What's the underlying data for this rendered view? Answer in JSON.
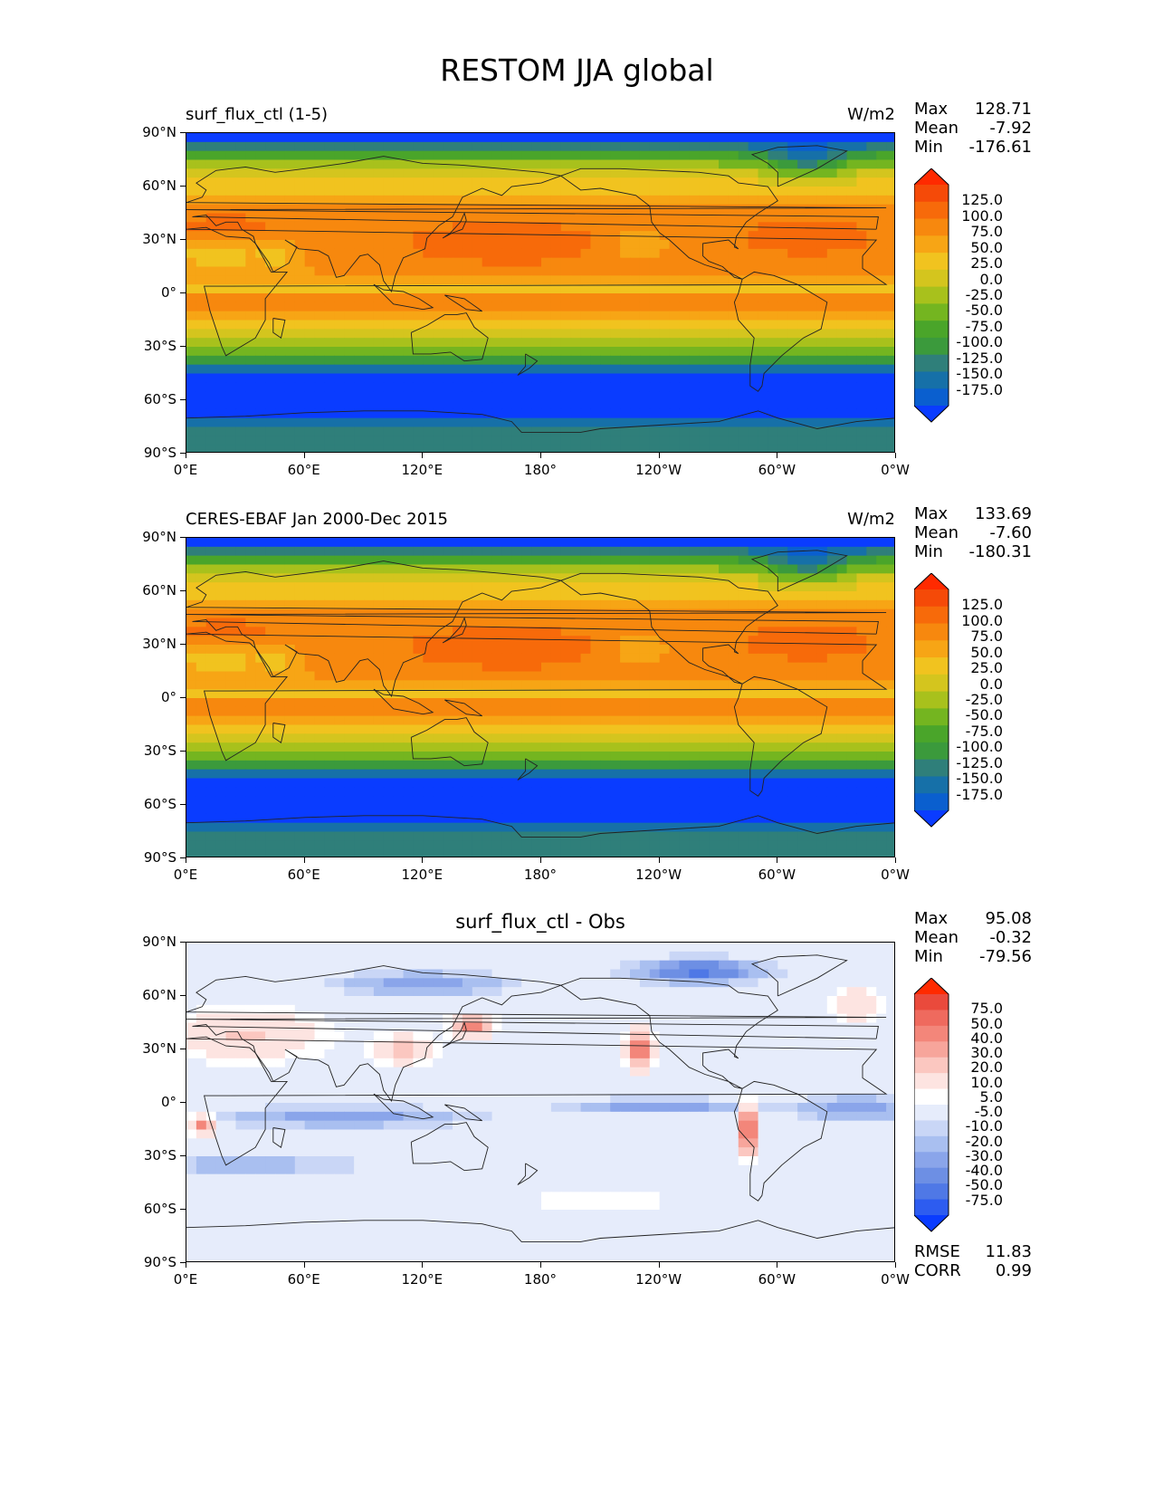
{
  "figure": {
    "title": "RESTOM JJA global"
  },
  "axes": {
    "lat_ticks": [
      "90°N",
      "60°N",
      "30°N",
      "0°",
      "30°S",
      "60°S",
      "90°S"
    ],
    "lon_ticks": [
      "0°E",
      "60°E",
      "120°E",
      "180°",
      "120°W",
      "60°W",
      "0°W"
    ]
  },
  "panels": [
    {
      "left_title": "surf_flux_ctl (1-5)",
      "center_title": "",
      "units": "W/m2",
      "stats": {
        "max_label": "Max",
        "max": "128.71",
        "mean_label": "Mean",
        "mean": "-7.92",
        "min_label": "Min",
        "min": "-176.61"
      },
      "colorbar_labels": [
        "125.0",
        "100.0",
        "75.0",
        "50.0",
        "25.0",
        "0.0",
        "-25.0",
        "-50.0",
        "-75.0",
        "-100.0",
        "-125.0",
        "-150.0",
        "-175.0"
      ],
      "colormap": "wbgyr"
    },
    {
      "left_title": "CERES-EBAF Jan 2000-Dec 2015",
      "center_title": "",
      "units": "W/m2",
      "stats": {
        "max_label": "Max",
        "max": "133.69",
        "mean_label": "Mean",
        "mean": "-7.60",
        "min_label": "Min",
        "min": "-180.31"
      },
      "colorbar_labels": [
        "125.0",
        "100.0",
        "75.0",
        "50.0",
        "25.0",
        "0.0",
        "-25.0",
        "-50.0",
        "-75.0",
        "-100.0",
        "-125.0",
        "-150.0",
        "-175.0"
      ],
      "colormap": "wbgyr"
    },
    {
      "left_title": "",
      "center_title": "surf_flux_ctl - Obs",
      "units": "",
      "stats": {
        "max_label": "Max",
        "max": "95.08",
        "mean_label": "Mean",
        "mean": "-0.32",
        "min_label": "Min",
        "min": "-79.56"
      },
      "colorbar_labels": [
        "75.0",
        "50.0",
        "40.0",
        "30.0",
        "20.0",
        "10.0",
        "5.0",
        "-5.0",
        "-10.0",
        "-20.0",
        "-30.0",
        "-40.0",
        "-50.0",
        "-75.0"
      ],
      "colormap": "diverging",
      "extra_stats": {
        "rmse_label": "RMSE",
        "rmse": "11.83",
        "corr_label": "CORR",
        "corr": "0.99"
      }
    }
  ],
  "colors": {
    "wbgyr": [
      "#0a3cff",
      "#0a5fcf",
      "#1670a8",
      "#2f7f7a",
      "#3b9a3c",
      "#4aa52a",
      "#74b520",
      "#a8c11c",
      "#d4c51e",
      "#f1c31f",
      "#f7a515",
      "#f7880e",
      "#f76a0a",
      "#f54a08",
      "#ff2a00"
    ],
    "diverging": [
      "#0a3cff",
      "#2d5cf0",
      "#4f78e6",
      "#6d8fe4",
      "#8aa5ea",
      "#a9bff0",
      "#c9d6f6",
      "#e6ecfb",
      "#ffffff",
      "#fde4e1",
      "#fbc7c0",
      "#f7a59b",
      "#f3867a",
      "#ef6a5e",
      "#ea4a3c",
      "#ff2a00"
    ]
  }
}
